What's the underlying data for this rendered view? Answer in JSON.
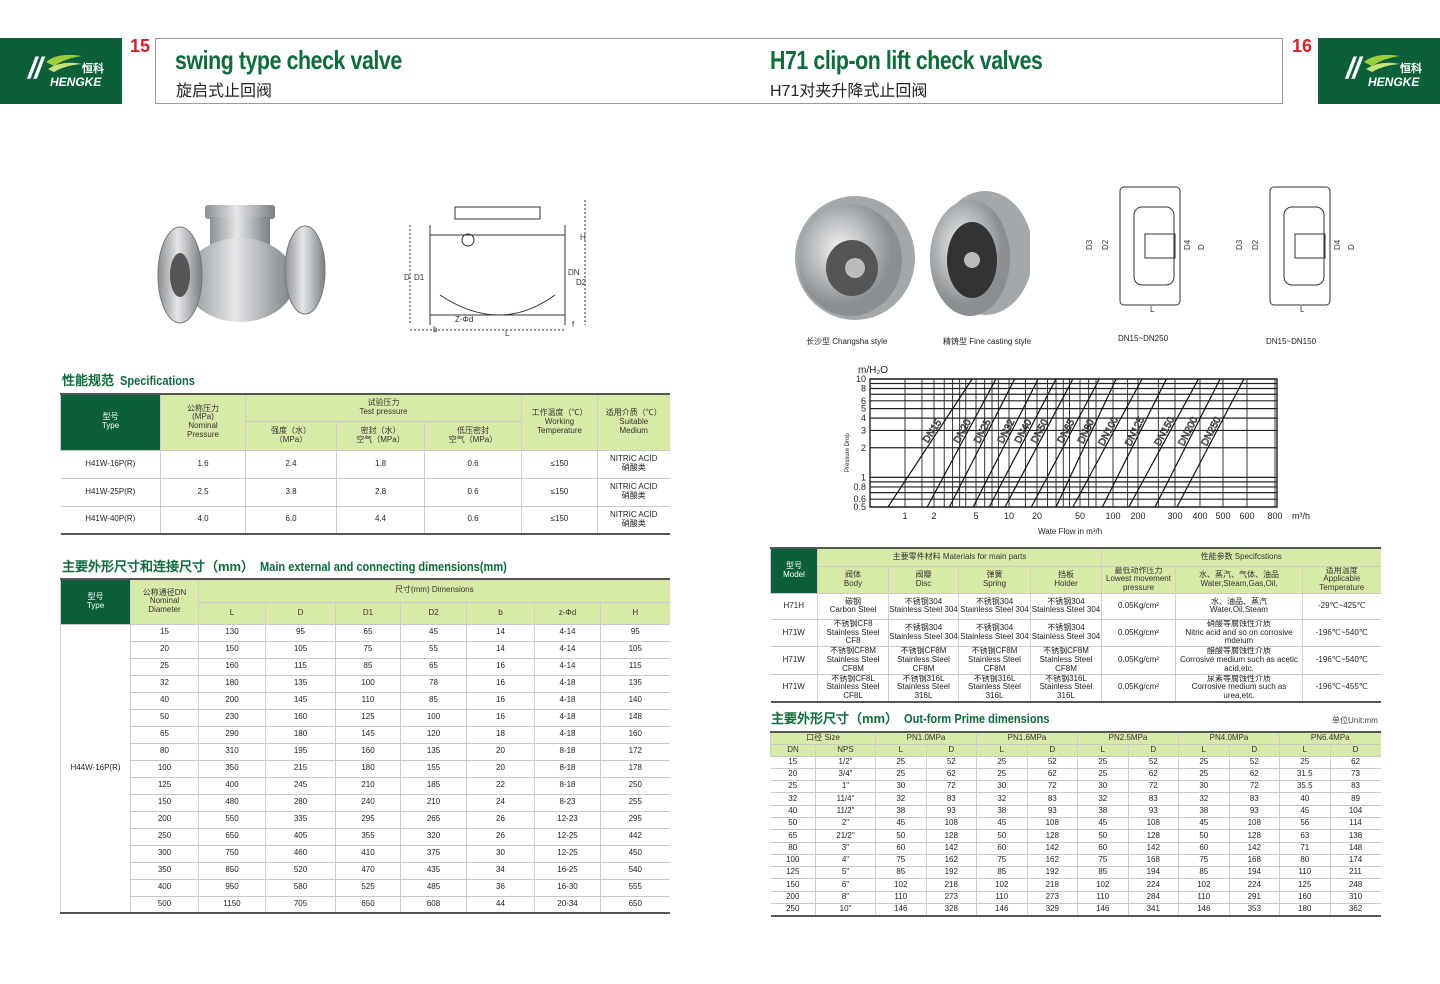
{
  "brand": {
    "name_cn": "恒科",
    "name_en": "HENGKE",
    "colors": {
      "green": "#0b6039",
      "light_green": "#d8eaa8",
      "red": "#d2232a"
    }
  },
  "left_page": {
    "page_number": "15",
    "title": "swing type check valve",
    "subtitle": "旋启式止回阀",
    "drawing_labels": [
      "H",
      "D",
      "D1",
      "DN",
      "D2",
      "Z-Φd",
      "L",
      "b",
      "f"
    ],
    "spec_heading_cn": "性能规范",
    "spec_heading_en": "Specifications",
    "spec_table": {
      "headers": {
        "type": "型号\nType",
        "nominal": "公称压力\n(MPa)\nNominal\nPressure",
        "test": "试验压力\nTest pressure",
        "strength": "强度（水）\n（MPa）",
        "seal": "密封（水）\n空气（MPa）",
        "low": "低压密封\n空气（MPa）",
        "temp": "工作温度（℃）\nWorking\nTemperature",
        "medium": "适用介质（℃）\nSuitable\nMedium"
      },
      "rows": [
        [
          "H41W-16P(R)",
          "1.6",
          "2.4",
          "1.8",
          "0.6",
          "≤150",
          "NITRIC ACID\n硝酸类"
        ],
        [
          "H41W-25P(R)",
          "2.5",
          "3.8",
          "2.8",
          "0.6",
          "≤150",
          "NITRIC ACID\n硝酸类"
        ],
        [
          "H41W-40P(R)",
          "4.0",
          "6.0",
          "4.4",
          "0.6",
          "≤150",
          "NITRIC ACID\n硝酸类"
        ]
      ]
    },
    "dim_heading_cn": "主要外形尺寸和连接尺寸（mm）",
    "dim_heading_en": "Main external and connecting dimensions(mm)",
    "dim_table": {
      "headers": {
        "type": "型号\nType",
        "dn": "公称通径DN\nNominal\nDiameter",
        "dims": "尺寸(mm) Dimensions",
        "cols": [
          "L",
          "D",
          "D1",
          "D2",
          "b",
          "z-Φd",
          "H"
        ]
      },
      "model": "H44W-16P(R)",
      "rows": [
        [
          "15",
          "130",
          "95",
          "65",
          "45",
          "14",
          "4-14",
          "95"
        ],
        [
          "20",
          "150",
          "105",
          "75",
          "55",
          "14",
          "4-14",
          "105"
        ],
        [
          "25",
          "160",
          "115",
          "85",
          "65",
          "16",
          "4-14",
          "115"
        ],
        [
          "32",
          "180",
          "135",
          "100",
          "78",
          "16",
          "4-18",
          "135"
        ],
        [
          "40",
          "200",
          "145",
          "110",
          "85",
          "16",
          "4-18",
          "140"
        ],
        [
          "50",
          "230",
          "160",
          "125",
          "100",
          "16",
          "4-18",
          "148"
        ],
        [
          "65",
          "290",
          "180",
          "145",
          "120",
          "18",
          "4-18",
          "160"
        ],
        [
          "80",
          "310",
          "195",
          "160",
          "135",
          "20",
          "8-18",
          "172"
        ],
        [
          "100",
          "350",
          "215",
          "180",
          "155",
          "20",
          "8-18",
          "178"
        ],
        [
          "125",
          "400",
          "245",
          "210",
          "185",
          "22",
          "8-18",
          "250"
        ],
        [
          "150",
          "480",
          "280",
          "240",
          "210",
          "24",
          "8-23",
          "255"
        ],
        [
          "200",
          "550",
          "335",
          "295",
          "265",
          "26",
          "12-23",
          "295"
        ],
        [
          "250",
          "650",
          "405",
          "355",
          "320",
          "26",
          "12-25",
          "442"
        ],
        [
          "300",
          "750",
          "460",
          "410",
          "375",
          "30",
          "12-25",
          "450"
        ],
        [
          "350",
          "850",
          "520",
          "470",
          "435",
          "34",
          "16-25",
          "540"
        ],
        [
          "400",
          "950",
          "580",
          "525",
          "485",
          "36",
          "16-30",
          "555"
        ],
        [
          "500",
          "1150",
          "705",
          "650",
          "608",
          "44",
          "20-34",
          "650"
        ]
      ]
    }
  },
  "right_page": {
    "page_number": "16",
    "title": "H71 clip-on lift check valves",
    "subtitle": "H71对夹升降式止回阀",
    "captions": [
      "长沙型 Changsha style",
      "精铸型 Fine casting style",
      "DN15~DN250",
      "DN15~DN150"
    ],
    "drawing_labels": [
      "D3",
      "D2",
      "D4",
      "D",
      "L"
    ],
    "materials_table": {
      "headers": {
        "model": "型号\nModel",
        "materials": "主要零件材料 Materials for main parts",
        "specs": "性能参数 Specifcstions",
        "cols": [
          "阀体\nBody",
          "阀瓣\nDisc",
          "弹簧\nSpring",
          "挡板\nHolder",
          "最低动作压力\nLowest movement\npressure",
          "水、蒸汽、气体、油品\nWater,Steam,Gas,Oil,",
          "适用温度\nApplicable\nTemperature"
        ]
      },
      "rows": [
        [
          "H71H",
          "碳钢\nCarbon Steel",
          "不锈钢304\nStainless Steel 304",
          "不锈钢304\nStainless Steel 304",
          "不锈钢304\nStainless Steel 304",
          "0.05Kg/cm²",
          "水、油品、蒸汽\nWater,Oil,Steam",
          "-29℃~425℃"
        ],
        [
          "H71W",
          "不锈钢CF8\nStainless Steel CF8",
          "不锈钢304\nStainless Steel 304",
          "不锈钢304\nStainless Steel 304",
          "不锈钢304\nStainless Steel 304",
          "0.05Kg/cm²",
          "硝酸等腐蚀性介质\nNitric acid and so on corrosive mdeium",
          "-196℃~540℃"
        ],
        [
          "H71W",
          "不锈钢CF8M\nStainless Steel CF8M",
          "不锈钢CF8M\nStainless Steel CF8M",
          "不锈钢CF8M\nStainless Steel CF8M",
          "不锈钢CF8M\nStainless Steel CF8M",
          "0.05Kg/cm²",
          "醋酸等腐蚀性介质\nCorrosive medium such as acetic acid,etc.",
          "-196℃~540℃"
        ],
        [
          "H71W",
          "不锈钢CF8L\nStainless Steel CF8L",
          "不锈钢316L\nStainless Steel 316L",
          "不锈钢316L\nStainless Steel 316L",
          "不锈钢316L\nStainless Steel 316L",
          "0.05Kg/cm²",
          "尿素等腐蚀性介质\nCorrosive medium such as urea,etc.",
          "-196℃~455℃"
        ]
      ]
    },
    "prime_heading_cn": "主要外形尺寸（mm）",
    "prime_heading_en": "Out-form Prime dimensions",
    "unit_label": "单位Unit:mm",
    "prime_table": {
      "size_header": "口径 Size",
      "groups": [
        "PN1.0MPa",
        "PN1.6MPa",
        "PN2.5MPa",
        "PN4.0MPa",
        "PN6.4MPa"
      ],
      "subheaders": [
        "DN",
        "NPS",
        "L",
        "D",
        "L",
        "D",
        "L",
        "D",
        "L",
        "D",
        "L",
        "D"
      ],
      "rows": [
        [
          "15",
          "1/2\"",
          "25",
          "52",
          "25",
          "52",
          "25",
          "52",
          "25",
          "52",
          "25",
          "62"
        ],
        [
          "20",
          "3/4\"",
          "25",
          "62",
          "25",
          "62",
          "25",
          "62",
          "25",
          "62",
          "31.5",
          "73"
        ],
        [
          "25",
          "1\"",
          "30",
          "72",
          "30",
          "72",
          "30",
          "72",
          "30",
          "72",
          "35.5",
          "83"
        ],
        [
          "32",
          "11/4\"",
          "32",
          "83",
          "32",
          "83",
          "32",
          "83",
          "32",
          "83",
          "40",
          "89"
        ],
        [
          "40",
          "11/2\"",
          "38",
          "93",
          "38",
          "93",
          "38",
          "93",
          "38",
          "93",
          "45",
          "104"
        ],
        [
          "50",
          "2\"",
          "45",
          "108",
          "45",
          "108",
          "45",
          "108",
          "45",
          "108",
          "56",
          "114"
        ],
        [
          "65",
          "21/2\"",
          "50",
          "128",
          "50",
          "128",
          "50",
          "128",
          "50",
          "128",
          "63",
          "138"
        ],
        [
          "80",
          "3\"",
          "60",
          "142",
          "60",
          "142",
          "60",
          "142",
          "60",
          "142",
          "71",
          "148"
        ],
        [
          "100",
          "4\"",
          "75",
          "162",
          "75",
          "162",
          "75",
          "168",
          "75",
          "168",
          "80",
          "174"
        ],
        [
          "125",
          "5\"",
          "85",
          "192",
          "85",
          "192",
          "85",
          "194",
          "85",
          "194",
          "110",
          "211"
        ],
        [
          "150",
          "6\"",
          "102",
          "218",
          "102",
          "218",
          "102",
          "224",
          "102",
          "224",
          "125",
          "248"
        ],
        [
          "200",
          "8\"",
          "110",
          "273",
          "110",
          "273",
          "110",
          "284",
          "110",
          "291",
          "160",
          "310"
        ],
        [
          "250",
          "10\"",
          "146",
          "328",
          "146",
          "329",
          "146",
          "341",
          "146",
          "353",
          "180",
          "362"
        ]
      ]
    }
  },
  "chart_data": {
    "type": "line",
    "y_unit": "m/H₂O",
    "ylabel": "Pressure Drop",
    "xlabel": "Wate Flow in m³/h",
    "x_unit": "m³/h",
    "y_ticks": [
      "10",
      "8",
      "6",
      "5",
      "4",
      "3",
      "2",
      "1",
      "0.8",
      "0.6",
      "0.5"
    ],
    "x_ticks": [
      "1",
      "2",
      "5",
      "10",
      "20",
      "50",
      "100",
      "200",
      "300",
      "400",
      "500",
      "600",
      "800"
    ],
    "ylim": [
      0.5,
      10
    ],
    "xlim": [
      0.9,
      900
    ],
    "y_scale": "log",
    "grid": true,
    "series": [
      {
        "name": "DN15",
        "points": [
          [
            0.95,
            0.5
          ],
          [
            4.6,
            10
          ]
        ]
      },
      {
        "name": "DN20",
        "points": [
          [
            1.7,
            0.5
          ],
          [
            7.6,
            10
          ]
        ]
      },
      {
        "name": "DN25",
        "points": [
          [
            2.8,
            0.5
          ],
          [
            11.5,
            10
          ]
        ]
      },
      {
        "name": "DN32",
        "points": [
          [
            4.7,
            0.5
          ],
          [
            20.5,
            10
          ]
        ]
      },
      {
        "name": "DN40",
        "points": [
          [
            6.6,
            0.5
          ],
          [
            30,
            10
          ]
        ]
      },
      {
        "name": "DN50",
        "points": [
          [
            9.2,
            0.5
          ],
          [
            43,
            10
          ]
        ]
      },
      {
        "name": "DN65",
        "points": [
          [
            17.4,
            0.5
          ],
          [
            75,
            10
          ]
        ]
      },
      {
        "name": "DN80",
        "points": [
          [
            30,
            0.5
          ],
          [
            109,
            10
          ]
        ]
      },
      {
        "name": "DN100",
        "points": [
          [
            43,
            0.5
          ],
          [
            209,
            10
          ]
        ]
      },
      {
        "name": "DN125",
        "points": [
          [
            80,
            0.5
          ],
          [
            273,
            10
          ]
        ]
      },
      {
        "name": "DN150",
        "points": [
          [
            155,
            0.5
          ],
          [
            393,
            10
          ]
        ]
      },
      {
        "name": "DN200",
        "points": [
          [
            241,
            0.5
          ],
          [
            486,
            10
          ]
        ]
      },
      {
        "name": "DN250",
        "points": [
          [
            307,
            0.5
          ],
          [
            586,
            10
          ]
        ]
      }
    ]
  }
}
